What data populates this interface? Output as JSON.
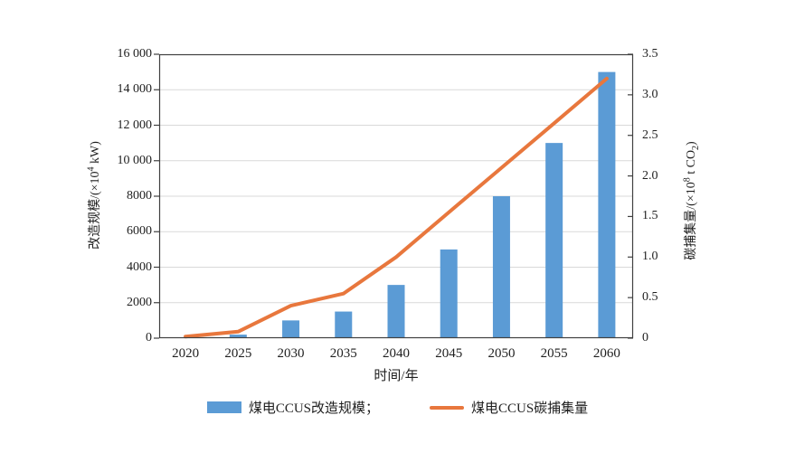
{
  "chart_data": {
    "type": "bar+line",
    "title": "",
    "categories": [
      "2020",
      "2025",
      "2030",
      "2035",
      "2040",
      "2045",
      "2050",
      "2055",
      "2060"
    ],
    "series": [
      {
        "name": "煤电CCUS改造规模",
        "type": "bar",
        "axis": "left",
        "color": "#5b9bd5",
        "values": [
          0,
          200,
          1000,
          1500,
          3000,
          5000,
          8000,
          11000,
          15000
        ]
      },
      {
        "name": "煤电CCUS碳捕集量",
        "type": "line",
        "axis": "right",
        "color": "#e8773d",
        "values": [
          0.02,
          0.08,
          0.4,
          0.55,
          1.0,
          1.55,
          2.1,
          2.65,
          3.2
        ]
      }
    ],
    "left_axis": {
      "label": "改造规模/(×10⁴ kW)",
      "range": [
        0,
        16000
      ],
      "tick_values": [
        0,
        2000,
        4000,
        6000,
        8000,
        10000,
        12000,
        14000,
        16000
      ],
      "tick_labels": [
        "0",
        "2000",
        "4000",
        "6000",
        "8000",
        "10 000",
        "12 000",
        "14 000",
        "16 000"
      ]
    },
    "right_axis": {
      "label": "碳捕集量/(×10⁸ t CO₂)",
      "range": [
        0,
        3.5
      ],
      "tick_values": [
        0,
        0.5,
        1.0,
        1.5,
        2.0,
        2.5,
        3.0,
        3.5
      ],
      "tick_labels": [
        "0",
        "0.5",
        "1.0",
        "1.5",
        "2.0",
        "2.5",
        "3.0",
        "3.5"
      ]
    },
    "x_axis": {
      "label": "时间/年"
    },
    "grid": true,
    "legend_position": "bottom",
    "legend_labels": [
      "煤电CCUS改造规模；",
      "煤电CCUS碳捕集量"
    ]
  },
  "axes": {
    "left_title": {
      "pre": "改造规模/(×10",
      "sup": "4",
      "post": " kW)"
    },
    "right_title": {
      "pre": "碳捕集量/(×10",
      "sup": "8",
      "mid": " t CO",
      "sub": "2",
      "post": ")"
    },
    "x_title": "时间/年"
  },
  "legend": {
    "items": [
      {
        "label": "煤电CCUS改造规模；",
        "swatch": "bar-swatch"
      },
      {
        "label": "煤电CCUS碳捕集量",
        "swatch": "line-swatch"
      }
    ]
  },
  "colors": {
    "bar": "#5b9bd5",
    "line": "#e8773d",
    "grid": "#d9d9d9",
    "spine": "#404040",
    "text": "#1f1f1f"
  }
}
